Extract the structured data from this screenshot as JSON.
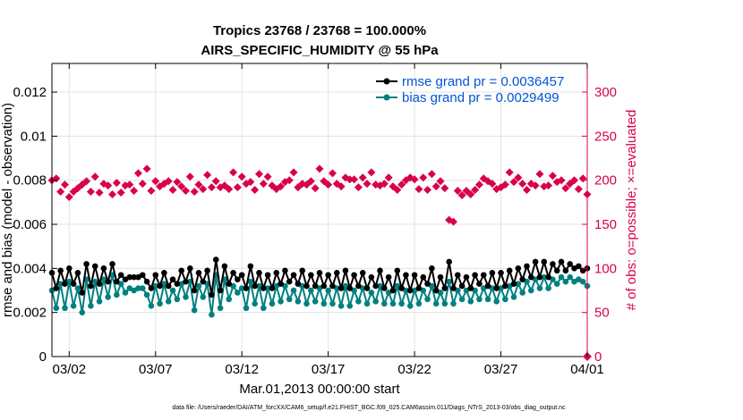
{
  "colors": {
    "rmse": "#000000",
    "bias": "#008080",
    "obs": "#d9004c",
    "legend_text": "#0055d4",
    "grid": "#e3e3e3",
    "axis": "#000000"
  },
  "chart_data": {
    "type": "line",
    "title": [
      "Tropics 23768 / 23768 = 100.000%",
      "AIRS_SPECIFIC_HUMIDITY @ 55 hPa"
    ],
    "xlabel": "Mar.01,2013 00:00:00 start",
    "ylabel_left": "rmse and bias (model - observation)",
    "ylabel_right": "# of obs: o=possible; ×=evaluated",
    "xlim": [
      0.5,
      31.5
    ],
    "ylim_left": [
      0,
      0.0133
    ],
    "ylim_right": [
      0,
      332.5
    ],
    "x_ticks": [
      1.5,
      6.5,
      11.5,
      16.5,
      21.5,
      26.5,
      31.5
    ],
    "x_tick_labels": [
      "03/02",
      "03/07",
      "03/12",
      "03/17",
      "03/22",
      "03/27",
      "04/01"
    ],
    "y_ticks_left": [
      0,
      0.002,
      0.004,
      0.006,
      0.008,
      0.01,
      0.012
    ],
    "y_tick_labels_left": [
      "0",
      "0.002",
      "0.004",
      "0.006",
      "0.008",
      "0.01",
      "0.012"
    ],
    "y_ticks_right": [
      0,
      50,
      100,
      150,
      200,
      250,
      300
    ],
    "y_tick_labels_right": [
      "0",
      "50",
      "100",
      "150",
      "200",
      "250",
      "300"
    ],
    "legend": [
      {
        "name": "rmse",
        "label": "rmse grand pr = 0.0036457"
      },
      {
        "name": "bias",
        "label": "bias grand pr = 0.0029499"
      }
    ],
    "note": "data file: /Users/raeder/DAI/ATM_forcXX/CAM6_setup/f.e21.FHIST_BGC.f09_025.CAM6assim.011/Diags_NTrS_2013-03/obs_diag_output.nc",
    "x": [
      0.5,
      0.75,
      1,
      1.25,
      1.5,
      1.75,
      2,
      2.25,
      2.5,
      2.75,
      3,
      3.25,
      3.5,
      3.75,
      4,
      4.25,
      4.5,
      4.75,
      5,
      5.25,
      5.5,
      5.75,
      6,
      6.25,
      6.5,
      6.75,
      7,
      7.25,
      7.5,
      7.75,
      8,
      8.25,
      8.5,
      8.75,
      9,
      9.25,
      9.5,
      9.75,
      10,
      10.25,
      10.5,
      10.75,
      11,
      11.25,
      11.5,
      11.75,
      12,
      12.25,
      12.5,
      12.75,
      13,
      13.25,
      13.5,
      13.75,
      14,
      14.25,
      14.5,
      14.75,
      15,
      15.25,
      15.5,
      15.75,
      16,
      16.25,
      16.5,
      16.75,
      17,
      17.25,
      17.5,
      17.75,
      18,
      18.25,
      18.5,
      18.75,
      19,
      19.25,
      19.5,
      19.75,
      20,
      20.25,
      20.5,
      20.75,
      21,
      21.25,
      21.5,
      21.75,
      22,
      22.25,
      22.5,
      22.75,
      23,
      23.25,
      23.5,
      23.75,
      24,
      24.25,
      24.5,
      24.75,
      25,
      25.25,
      25.5,
      25.75,
      26,
      26.25,
      26.5,
      26.75,
      27,
      27.25,
      27.5,
      27.75,
      28,
      28.25,
      28.5,
      28.75,
      29,
      29.25,
      29.5,
      29.75,
      30,
      30.25,
      30.5,
      30.75,
      31,
      31.25,
      31.5
    ],
    "rmse": [
      0.0038,
      0.0031,
      0.0039,
      0.0033,
      0.004,
      0.0033,
      0.0038,
      0.0029,
      0.0042,
      0.0032,
      0.0041,
      0.0033,
      0.004,
      0.0034,
      0.0042,
      0.0034,
      0.0037,
      0.0035,
      0.0036,
      0.0036,
      0.0036,
      0.0037,
      0.0034,
      0.0031,
      0.0037,
      0.0032,
      0.0038,
      0.0032,
      0.0035,
      0.0033,
      0.0039,
      0.0034,
      0.004,
      0.003,
      0.0038,
      0.0034,
      0.0039,
      0.0028,
      0.0044,
      0.003,
      0.0041,
      0.0033,
      0.0038,
      0.0035,
      0.0037,
      0.0031,
      0.0041,
      0.0032,
      0.0038,
      0.0031,
      0.0037,
      0.0031,
      0.0038,
      0.0033,
      0.0039,
      0.0034,
      0.0037,
      0.0033,
      0.0039,
      0.0032,
      0.0037,
      0.0032,
      0.0038,
      0.0032,
      0.0037,
      0.0032,
      0.0038,
      0.0031,
      0.0039,
      0.0031,
      0.0037,
      0.0032,
      0.0038,
      0.0031,
      0.0036,
      0.0032,
      0.0039,
      0.0031,
      0.0036,
      0.003,
      0.0039,
      0.0031,
      0.0037,
      0.003,
      0.0037,
      0.0031,
      0.0036,
      0.0033,
      0.004,
      0.003,
      0.0036,
      0.0031,
      0.0043,
      0.0031,
      0.0037,
      0.0032,
      0.0036,
      0.0031,
      0.0037,
      0.0033,
      0.0037,
      0.0032,
      0.0038,
      0.0031,
      0.0038,
      0.0032,
      0.0039,
      0.0033,
      0.004,
      0.0035,
      0.0041,
      0.0036,
      0.0043,
      0.0036,
      0.0043,
      0.0036,
      0.0042,
      0.0039,
      0.0043,
      0.0039,
      0.0042,
      0.004,
      0.0041,
      0.0039,
      0.004
    ],
    "bias": [
      0.003,
      0.0022,
      0.0033,
      0.0022,
      0.0034,
      0.0023,
      0.0031,
      0.002,
      0.0035,
      0.0023,
      0.0034,
      0.0025,
      0.0035,
      0.0027,
      0.0037,
      0.0028,
      0.0033,
      0.0029,
      0.0031,
      0.003,
      0.0031,
      0.0031,
      0.0028,
      0.0023,
      0.0032,
      0.0024,
      0.0033,
      0.0025,
      0.003,
      0.0026,
      0.0033,
      0.0027,
      0.0034,
      0.0021,
      0.0032,
      0.0027,
      0.0033,
      0.0019,
      0.0037,
      0.0022,
      0.0035,
      0.0026,
      0.0032,
      0.0029,
      0.0031,
      0.0022,
      0.0034,
      0.0024,
      0.0032,
      0.0022,
      0.0031,
      0.0024,
      0.0032,
      0.0025,
      0.0032,
      0.0026,
      0.003,
      0.0025,
      0.0032,
      0.0024,
      0.003,
      0.0025,
      0.0031,
      0.0024,
      0.003,
      0.0024,
      0.0031,
      0.0023,
      0.0032,
      0.0023,
      0.003,
      0.0025,
      0.0031,
      0.0024,
      0.0029,
      0.0025,
      0.0032,
      0.0024,
      0.0029,
      0.0024,
      0.0032,
      0.0024,
      0.003,
      0.0023,
      0.003,
      0.0024,
      0.003,
      0.0026,
      0.0032,
      0.0024,
      0.0029,
      0.0024,
      0.0034,
      0.0024,
      0.003,
      0.0026,
      0.003,
      0.0025,
      0.003,
      0.0026,
      0.0031,
      0.0026,
      0.0031,
      0.0025,
      0.0031,
      0.0026,
      0.0032,
      0.0027,
      0.0033,
      0.0029,
      0.0034,
      0.003,
      0.0035,
      0.0031,
      0.0036,
      0.0031,
      0.0035,
      0.0033,
      0.0036,
      0.0034,
      0.0036,
      0.0034,
      0.0035,
      0.0034,
      0.0032
    ],
    "obs_count": [
      200,
      202,
      187,
      195,
      181,
      187,
      191,
      195,
      199,
      187,
      204,
      186,
      196,
      194,
      184,
      197,
      186,
      194,
      195,
      188,
      208,
      196,
      213,
      188,
      199,
      193,
      196,
      199,
      189,
      198,
      193,
      188,
      204,
      187,
      195,
      190,
      206,
      192,
      199,
      192,
      194,
      190,
      209,
      192,
      204,
      196,
      198,
      189,
      207,
      196,
      204,
      194,
      190,
      193,
      198,
      200,
      209,
      192,
      196,
      195,
      199,
      191,
      213,
      199,
      195,
      208,
      196,
      193,
      203,
      201,
      201,
      192,
      203,
      196,
      209,
      195,
      194,
      196,
      203,
      193,
      189,
      195,
      200,
      203,
      201,
      190,
      203,
      189,
      207,
      193,
      199,
      191,
      155,
      153,
      188,
      183,
      188,
      184,
      189,
      195,
      202,
      199,
      196,
      190,
      192,
      195,
      209,
      198,
      203,
      196,
      189,
      196,
      194,
      207,
      193,
      194,
      205,
      198,
      200,
      191,
      196,
      200,
      190,
      202,
      184
    ]
  }
}
